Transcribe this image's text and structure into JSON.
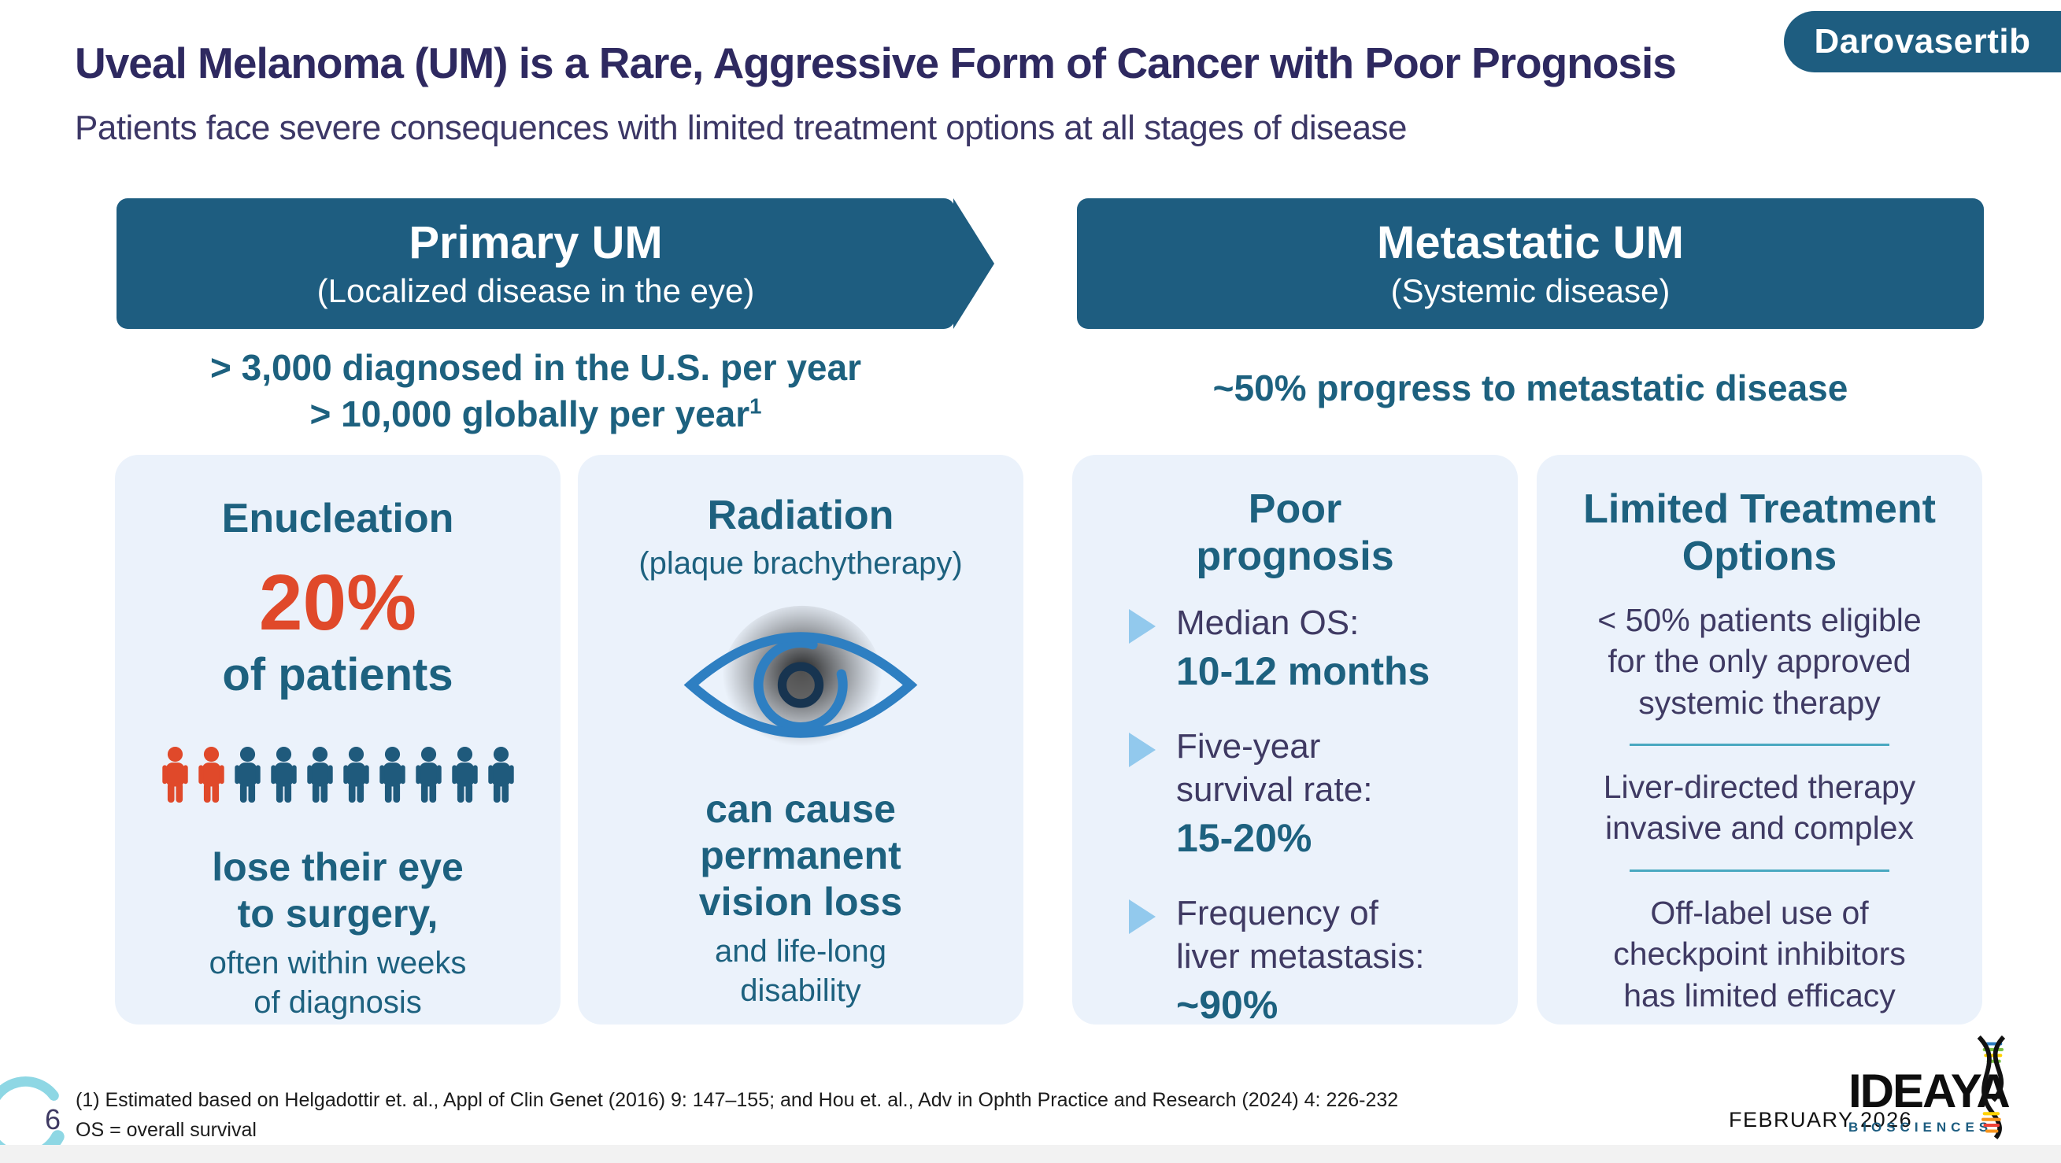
{
  "badge": {
    "label": "Darovasertib"
  },
  "header": {
    "title": "Uveal Melanoma (UM) is a Rare, Aggressive Form of Cancer with Poor Prognosis",
    "subtitle": "Patients face severe consequences with limited treatment options at all stages of disease"
  },
  "primary": {
    "title": "Primary UM",
    "subtitle": "(Localized disease in the eye)",
    "stat_line1": "> 3,000 diagnosed in the U.S. per year",
    "stat_line2": "> 10,000 globally per year",
    "stat_superscript": "1"
  },
  "metastatic": {
    "title": "Metastatic UM",
    "subtitle": "(Systemic disease)",
    "stat": "~50% progress to metastatic disease"
  },
  "cards": {
    "enucleation": {
      "title": "Enucleation",
      "percent": "20%",
      "percent_caption": "of patients",
      "pictogram": {
        "total": 10,
        "highlighted": 2,
        "icon": "person-icon"
      },
      "bold_lines": [
        "lose their eye",
        "to surgery,"
      ],
      "normal_lines": [
        "often within weeks",
        "of diagnosis"
      ]
    },
    "radiation": {
      "title": "Radiation",
      "subtitle": "(plaque brachytherapy)",
      "icon": "eye-icon",
      "bold_lines": [
        "can cause",
        "permanent",
        "vision loss"
      ],
      "normal_lines": [
        "and life-long",
        "disability"
      ]
    },
    "prognosis": {
      "title_lines": [
        "Poor",
        "prognosis"
      ],
      "bullets": [
        {
          "label_lines": [
            "Median OS:"
          ],
          "value": "10-12 months"
        },
        {
          "label_lines": [
            "Five-year",
            "survival rate:"
          ],
          "value": "15-20%"
        },
        {
          "label_lines": [
            "Frequency of",
            "liver metastasis:"
          ],
          "value": "~90%"
        }
      ]
    },
    "treatment": {
      "title_lines": [
        "Limited Treatment",
        "Options"
      ],
      "items": [
        [
          "< 50% patients eligible",
          "for the only approved",
          "systemic therapy"
        ],
        [
          "Liver-directed therapy",
          "invasive and complex"
        ],
        [
          "Off-label use of",
          "checkpoint inhibitors",
          "has limited efficacy"
        ]
      ]
    }
  },
  "footer": {
    "page_number": "6",
    "footnote_line1": "(1) Estimated based on Helgadottir et. al., Appl of Clin Genet (2016) 9: 147–155; and Hou et. al., Adv in Ophth Practice and Research (2024) 4: 226-232",
    "footnote_line2": "OS = overall survival",
    "date": "FEBRUARY 2026",
    "logo_text": "IDEAYA",
    "logo_subtext": "BIOSCIENCES"
  },
  "colors": {
    "banner": "#1e5d80",
    "cardBg": "#ebf2fb",
    "titleNavy": "#2e2960",
    "subNavy": "#3c3766",
    "bodyNavy": "#3f3a63",
    "teal": "#1d617f",
    "tealDark": "#1f5a7c",
    "orange": "#e0492a",
    "bulletBlue": "#92c9ed",
    "dividerTeal": "#49a8c0",
    "eyeBlue": "#2e7fc2",
    "footerBar": "#f2f2f2",
    "crescent": "#8ed7e4",
    "logoTeal": "#1d5d80"
  }
}
